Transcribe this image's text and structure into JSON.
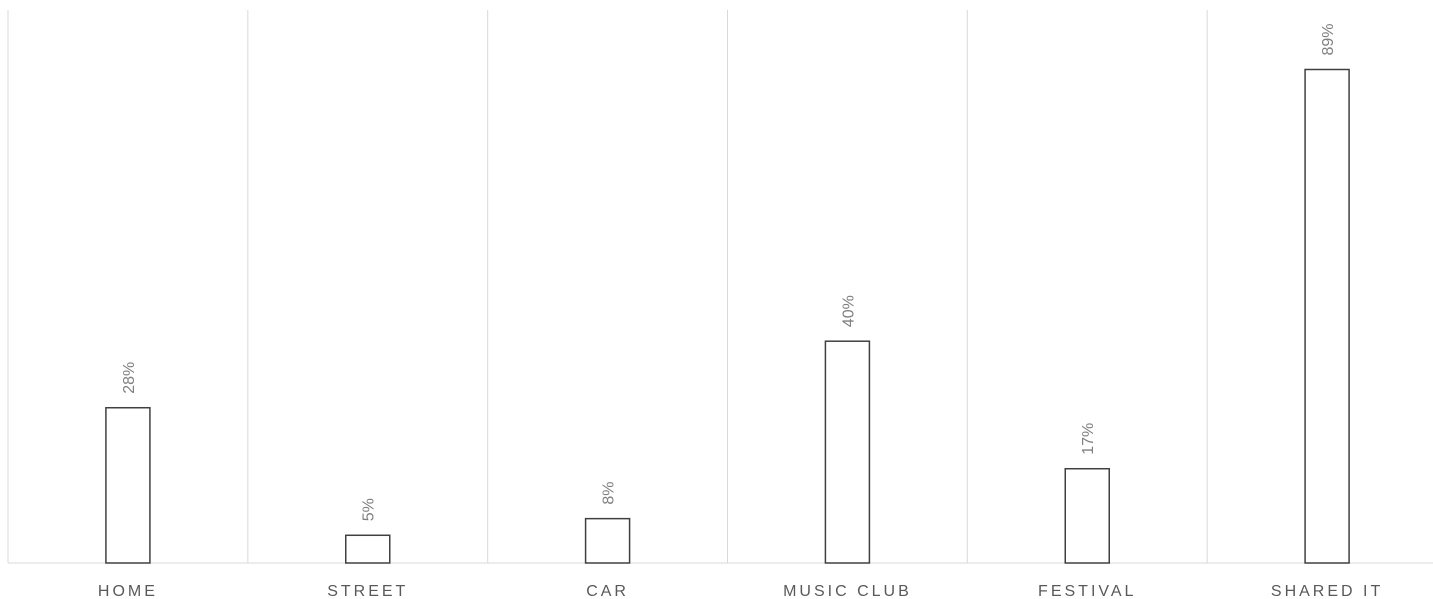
{
  "chart_data": {
    "type": "bar",
    "categories": [
      "HOME",
      "STREET",
      "CAR",
      "MUSIC CLUB",
      "FESTIVAL",
      "SHARED IT"
    ],
    "values": [
      28,
      5,
      8,
      40,
      17,
      89
    ],
    "data_labels": [
      "28%",
      "5%",
      "8%",
      "40%",
      "17%",
      "89%"
    ],
    "unit": "%",
    "title": "",
    "xlabel": "",
    "ylabel": "",
    "ylim": [
      0,
      100
    ],
    "grid": "vertical separators between categories",
    "legend": "none",
    "bar_fill": "#ffffff",
    "bar_stroke": "#404040",
    "label_color": "#7f7f7f",
    "tick_color": "#595959",
    "grid_color": "#d9d9d9"
  }
}
